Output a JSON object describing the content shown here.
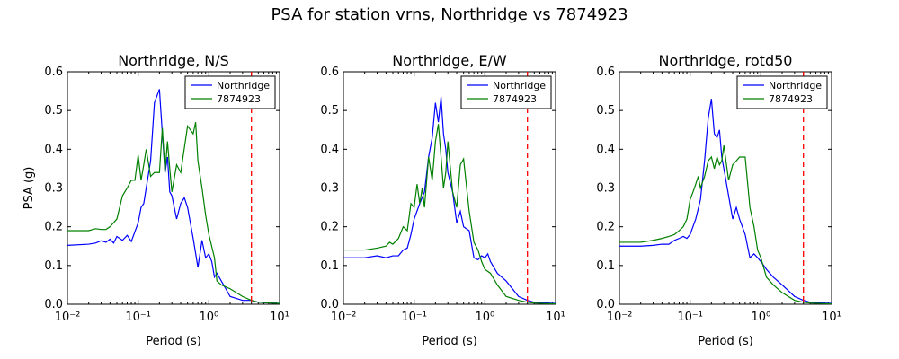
{
  "figure": {
    "title": "PSA for station vrns, Northridge vs 7874923"
  },
  "colors": {
    "series1": "#0000ff",
    "series2": "#008000",
    "cutoff": "#ff0000"
  },
  "chart_data": [
    {
      "type": "line",
      "title": "Northridge, N/S",
      "xlabel": "Period (s)",
      "ylabel": "PSA (g)",
      "xscale": "log",
      "xlim": [
        0.01,
        10
      ],
      "ylim": [
        0,
        0.6
      ],
      "x_tick_labels": [
        "10⁻²",
        "10⁻¹",
        "10⁰",
        "10¹"
      ],
      "y_tick_labels": [
        "0.0",
        "0.1",
        "0.2",
        "0.3",
        "0.4",
        "0.5",
        "0.6"
      ],
      "legend": "upper-right",
      "cutoff_period": 4.0,
      "series": [
        {
          "name": "Northridge",
          "x": [
            0.01,
            0.02,
            0.025,
            0.03,
            0.035,
            0.04,
            0.045,
            0.05,
            0.06,
            0.07,
            0.08,
            0.1,
            0.11,
            0.12,
            0.13,
            0.15,
            0.17,
            0.2,
            0.22,
            0.24,
            0.26,
            0.28,
            0.3,
            0.35,
            0.4,
            0.45,
            0.5,
            0.6,
            0.7,
            0.8,
            0.9,
            1.0,
            1.1,
            1.2,
            1.3,
            1.5,
            2.0,
            3.0,
            4.0,
            5.0,
            10.0
          ],
          "y": [
            0.152,
            0.155,
            0.158,
            0.164,
            0.16,
            0.168,
            0.158,
            0.175,
            0.165,
            0.178,
            0.162,
            0.21,
            0.25,
            0.26,
            0.3,
            0.37,
            0.52,
            0.555,
            0.44,
            0.34,
            0.38,
            0.29,
            0.28,
            0.22,
            0.26,
            0.275,
            0.25,
            0.17,
            0.095,
            0.165,
            0.12,
            0.13,
            0.11,
            0.07,
            0.08,
            0.06,
            0.02,
            0.01,
            0.01,
            0.005,
            0.002
          ]
        },
        {
          "name": "7874923",
          "x": [
            0.01,
            0.02,
            0.025,
            0.03,
            0.035,
            0.04,
            0.05,
            0.06,
            0.07,
            0.08,
            0.09,
            0.1,
            0.11,
            0.12,
            0.13,
            0.15,
            0.17,
            0.2,
            0.22,
            0.24,
            0.26,
            0.28,
            0.3,
            0.35,
            0.4,
            0.5,
            0.6,
            0.65,
            0.7,
            0.8,
            0.9,
            1.0,
            1.2,
            1.3,
            1.5,
            2.0,
            3.0,
            4.0,
            5.0,
            10.0
          ],
          "y": [
            0.19,
            0.19,
            0.195,
            0.193,
            0.193,
            0.2,
            0.22,
            0.28,
            0.3,
            0.32,
            0.32,
            0.385,
            0.32,
            0.36,
            0.4,
            0.33,
            0.34,
            0.34,
            0.455,
            0.34,
            0.42,
            0.35,
            0.29,
            0.36,
            0.34,
            0.46,
            0.44,
            0.47,
            0.37,
            0.3,
            0.23,
            0.18,
            0.12,
            0.06,
            0.05,
            0.04,
            0.02,
            0.01,
            0.005,
            0.002
          ]
        }
      ]
    },
    {
      "type": "line",
      "title": "Northridge, E/W",
      "xlabel": "Period (s)",
      "ylabel": "",
      "xscale": "log",
      "xlim": [
        0.01,
        10
      ],
      "ylim": [
        0,
        0.6
      ],
      "x_tick_labels": [
        "10⁻²",
        "10⁻¹",
        "10⁰",
        "10¹"
      ],
      "y_tick_labels": [
        "0.0",
        "0.1",
        "0.2",
        "0.3",
        "0.4",
        "0.5",
        "0.6"
      ],
      "legend": "upper-right",
      "cutoff_period": 4.0,
      "series": [
        {
          "name": "Northridge",
          "x": [
            0.01,
            0.02,
            0.03,
            0.04,
            0.05,
            0.06,
            0.07,
            0.08,
            0.09,
            0.1,
            0.12,
            0.14,
            0.16,
            0.18,
            0.2,
            0.22,
            0.24,
            0.26,
            0.28,
            0.3,
            0.35,
            0.4,
            0.45,
            0.5,
            0.6,
            0.7,
            0.8,
            0.9,
            1.0,
            1.1,
            1.2,
            1.5,
            2.0,
            3.0,
            4.0,
            5.0,
            10.0
          ],
          "y": [
            0.12,
            0.12,
            0.125,
            0.12,
            0.125,
            0.125,
            0.14,
            0.145,
            0.18,
            0.22,
            0.26,
            0.29,
            0.38,
            0.43,
            0.52,
            0.47,
            0.535,
            0.44,
            0.4,
            0.34,
            0.29,
            0.21,
            0.24,
            0.2,
            0.19,
            0.12,
            0.115,
            0.125,
            0.12,
            0.13,
            0.11,
            0.08,
            0.06,
            0.02,
            0.01,
            0.005,
            0.002
          ]
        },
        {
          "name": "7874923",
          "x": [
            0.01,
            0.02,
            0.03,
            0.04,
            0.045,
            0.05,
            0.06,
            0.07,
            0.08,
            0.09,
            0.1,
            0.11,
            0.12,
            0.13,
            0.14,
            0.16,
            0.18,
            0.2,
            0.22,
            0.24,
            0.26,
            0.28,
            0.3,
            0.35,
            0.4,
            0.45,
            0.5,
            0.6,
            0.7,
            0.8,
            0.9,
            1.0,
            1.2,
            1.5,
            2.0,
            3.0,
            4.0,
            5.0,
            10.0
          ],
          "y": [
            0.14,
            0.14,
            0.145,
            0.15,
            0.16,
            0.155,
            0.17,
            0.2,
            0.19,
            0.26,
            0.25,
            0.31,
            0.26,
            0.3,
            0.25,
            0.38,
            0.32,
            0.42,
            0.465,
            0.38,
            0.3,
            0.34,
            0.42,
            0.29,
            0.25,
            0.36,
            0.375,
            0.24,
            0.16,
            0.14,
            0.11,
            0.09,
            0.08,
            0.05,
            0.02,
            0.01,
            0.005,
            0.003,
            0.001
          ]
        }
      ]
    },
    {
      "type": "line",
      "title": "Northridge, rotd50",
      "xlabel": "Period (s)",
      "ylabel": "",
      "xscale": "log",
      "xlim": [
        0.01,
        10
      ],
      "ylim": [
        0,
        0.6
      ],
      "x_tick_labels": [
        "10⁻²",
        "10⁻¹",
        "10⁰",
        "10¹"
      ],
      "y_tick_labels": [
        "0.0",
        "0.1",
        "0.2",
        "0.3",
        "0.4",
        "0.5",
        "0.6"
      ],
      "legend": "upper-right",
      "cutoff_period": 4.0,
      "series": [
        {
          "name": "Northridge",
          "x": [
            0.01,
            0.02,
            0.03,
            0.04,
            0.05,
            0.06,
            0.07,
            0.08,
            0.09,
            0.1,
            0.12,
            0.14,
            0.16,
            0.18,
            0.2,
            0.22,
            0.24,
            0.26,
            0.28,
            0.3,
            0.35,
            0.4,
            0.45,
            0.5,
            0.6,
            0.7,
            0.8,
            0.9,
            1.0,
            1.1,
            1.2,
            1.5,
            2.0,
            3.0,
            4.0,
            5.0,
            10.0
          ],
          "y": [
            0.15,
            0.15,
            0.152,
            0.155,
            0.155,
            0.165,
            0.17,
            0.175,
            0.17,
            0.18,
            0.22,
            0.27,
            0.37,
            0.48,
            0.53,
            0.44,
            0.43,
            0.45,
            0.38,
            0.35,
            0.28,
            0.22,
            0.25,
            0.22,
            0.18,
            0.12,
            0.13,
            0.12,
            0.11,
            0.1,
            0.09,
            0.07,
            0.05,
            0.02,
            0.01,
            0.005,
            0.002
          ]
        },
        {
          "name": "7874923",
          "x": [
            0.01,
            0.02,
            0.03,
            0.04,
            0.05,
            0.06,
            0.07,
            0.08,
            0.09,
            0.1,
            0.11,
            0.12,
            0.13,
            0.14,
            0.16,
            0.18,
            0.2,
            0.22,
            0.24,
            0.26,
            0.28,
            0.3,
            0.35,
            0.4,
            0.45,
            0.5,
            0.6,
            0.7,
            0.8,
            0.9,
            1.0,
            1.2,
            1.5,
            2.0,
            3.0,
            4.0,
            5.0,
            10.0
          ],
          "y": [
            0.16,
            0.16,
            0.165,
            0.17,
            0.175,
            0.18,
            0.19,
            0.2,
            0.22,
            0.27,
            0.29,
            0.31,
            0.33,
            0.3,
            0.33,
            0.37,
            0.38,
            0.35,
            0.38,
            0.36,
            0.37,
            0.41,
            0.32,
            0.36,
            0.37,
            0.38,
            0.38,
            0.25,
            0.2,
            0.14,
            0.12,
            0.07,
            0.05,
            0.03,
            0.01,
            0.005,
            0.003,
            0.001
          ]
        }
      ]
    }
  ]
}
